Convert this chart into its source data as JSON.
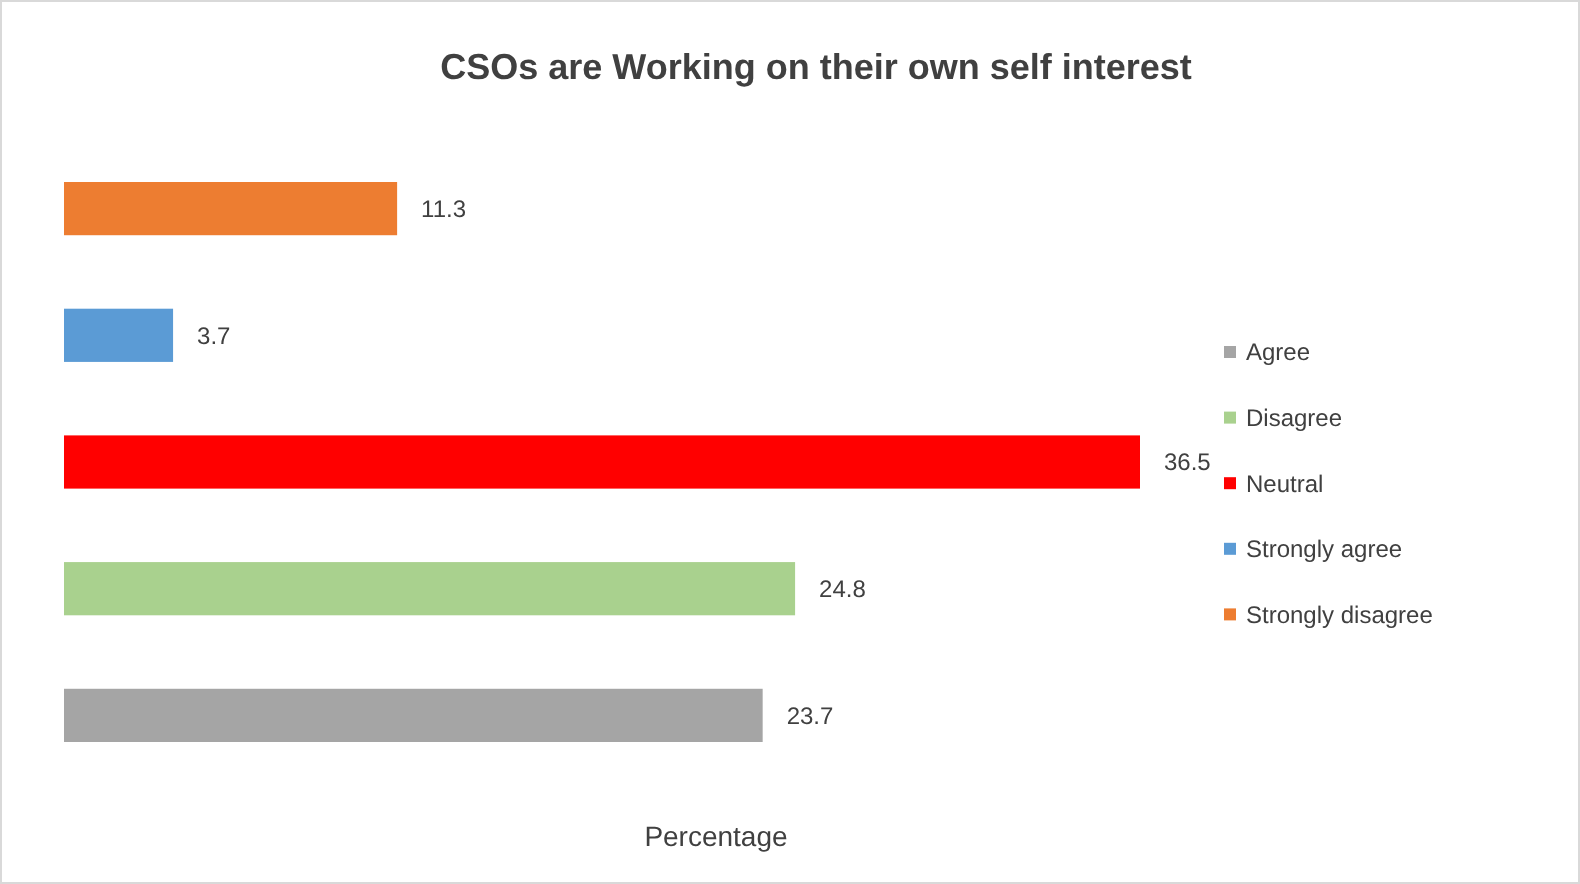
{
  "chart_data": {
    "type": "bar",
    "orientation": "horizontal",
    "title": "CSOs are Working on their own self interest",
    "xlabel": "Percentage",
    "categories": [
      null,
      null,
      null,
      null,
      null
    ],
    "series": [
      {
        "name": "Agree",
        "color": "#a5a5a5",
        "values": [
          null,
          null,
          null,
          null,
          23.7
        ]
      },
      {
        "name": "Disagree",
        "color": "#a9d18e",
        "values": [
          null,
          null,
          null,
          24.8,
          null
        ]
      },
      {
        "name": "Neutral",
        "color": "#ff0000",
        "values": [
          null,
          null,
          36.5,
          null,
          null
        ]
      },
      {
        "name": "Strongly agree",
        "color": "#5b9bd5",
        "values": [
          null,
          3.7,
          null,
          null,
          null
        ]
      },
      {
        "name": "Strongly disagree",
        "color": "#ed7d31",
        "values": [
          11.3,
          null,
          null,
          null,
          null
        ]
      }
    ],
    "stacked": true,
    "data_labels": true,
    "legend": "right"
  }
}
